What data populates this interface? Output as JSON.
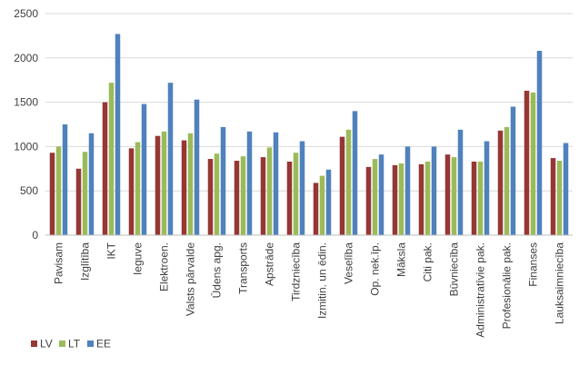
{
  "chart_data": {
    "type": "bar",
    "title": "",
    "xlabel": "",
    "ylabel": "",
    "ylim": [
      0,
      2500
    ],
    "yticks": [
      0,
      500,
      1000,
      1500,
      2000,
      2500
    ],
    "grid": "horizontal",
    "legend_position": "bottom-left",
    "categories": [
      "Pavisam",
      "Izglītība",
      "IKT",
      "Ieguve",
      "Elektroen.",
      "Valsts pārvalde",
      "Ūdens apg.",
      "Transports",
      "Apstrāde",
      "Tirdzniecība",
      "Izmitin. un ēdin.",
      "Veselība",
      "Op. nek.īp.",
      "Māksla",
      "Citi pak.",
      "Būvniecība",
      "Administratīvie pak.",
      "Profesionālie pak.",
      "Finanses",
      "Lauksaimniecība"
    ],
    "series": [
      {
        "name": "LV",
        "color": "#953735",
        "values": [
          930,
          750,
          1500,
          980,
          1120,
          1070,
          860,
          840,
          880,
          830,
          590,
          1110,
          770,
          790,
          800,
          910,
          830,
          1180,
          1630,
          870
        ]
      },
      {
        "name": "LT",
        "color": "#9bbb59",
        "values": [
          1000,
          940,
          1720,
          1050,
          1170,
          1150,
          920,
          890,
          990,
          930,
          670,
          1190,
          860,
          810,
          830,
          880,
          830,
          1220,
          1610,
          840
        ]
      },
      {
        "name": "EE",
        "color": "#4f81bd",
        "values": [
          1250,
          1150,
          2270,
          1480,
          1720,
          1530,
          1220,
          1170,
          1160,
          1060,
          740,
          1400,
          910,
          1000,
          1000,
          1190,
          1060,
          1450,
          2080,
          1040
        ]
      }
    ]
  }
}
